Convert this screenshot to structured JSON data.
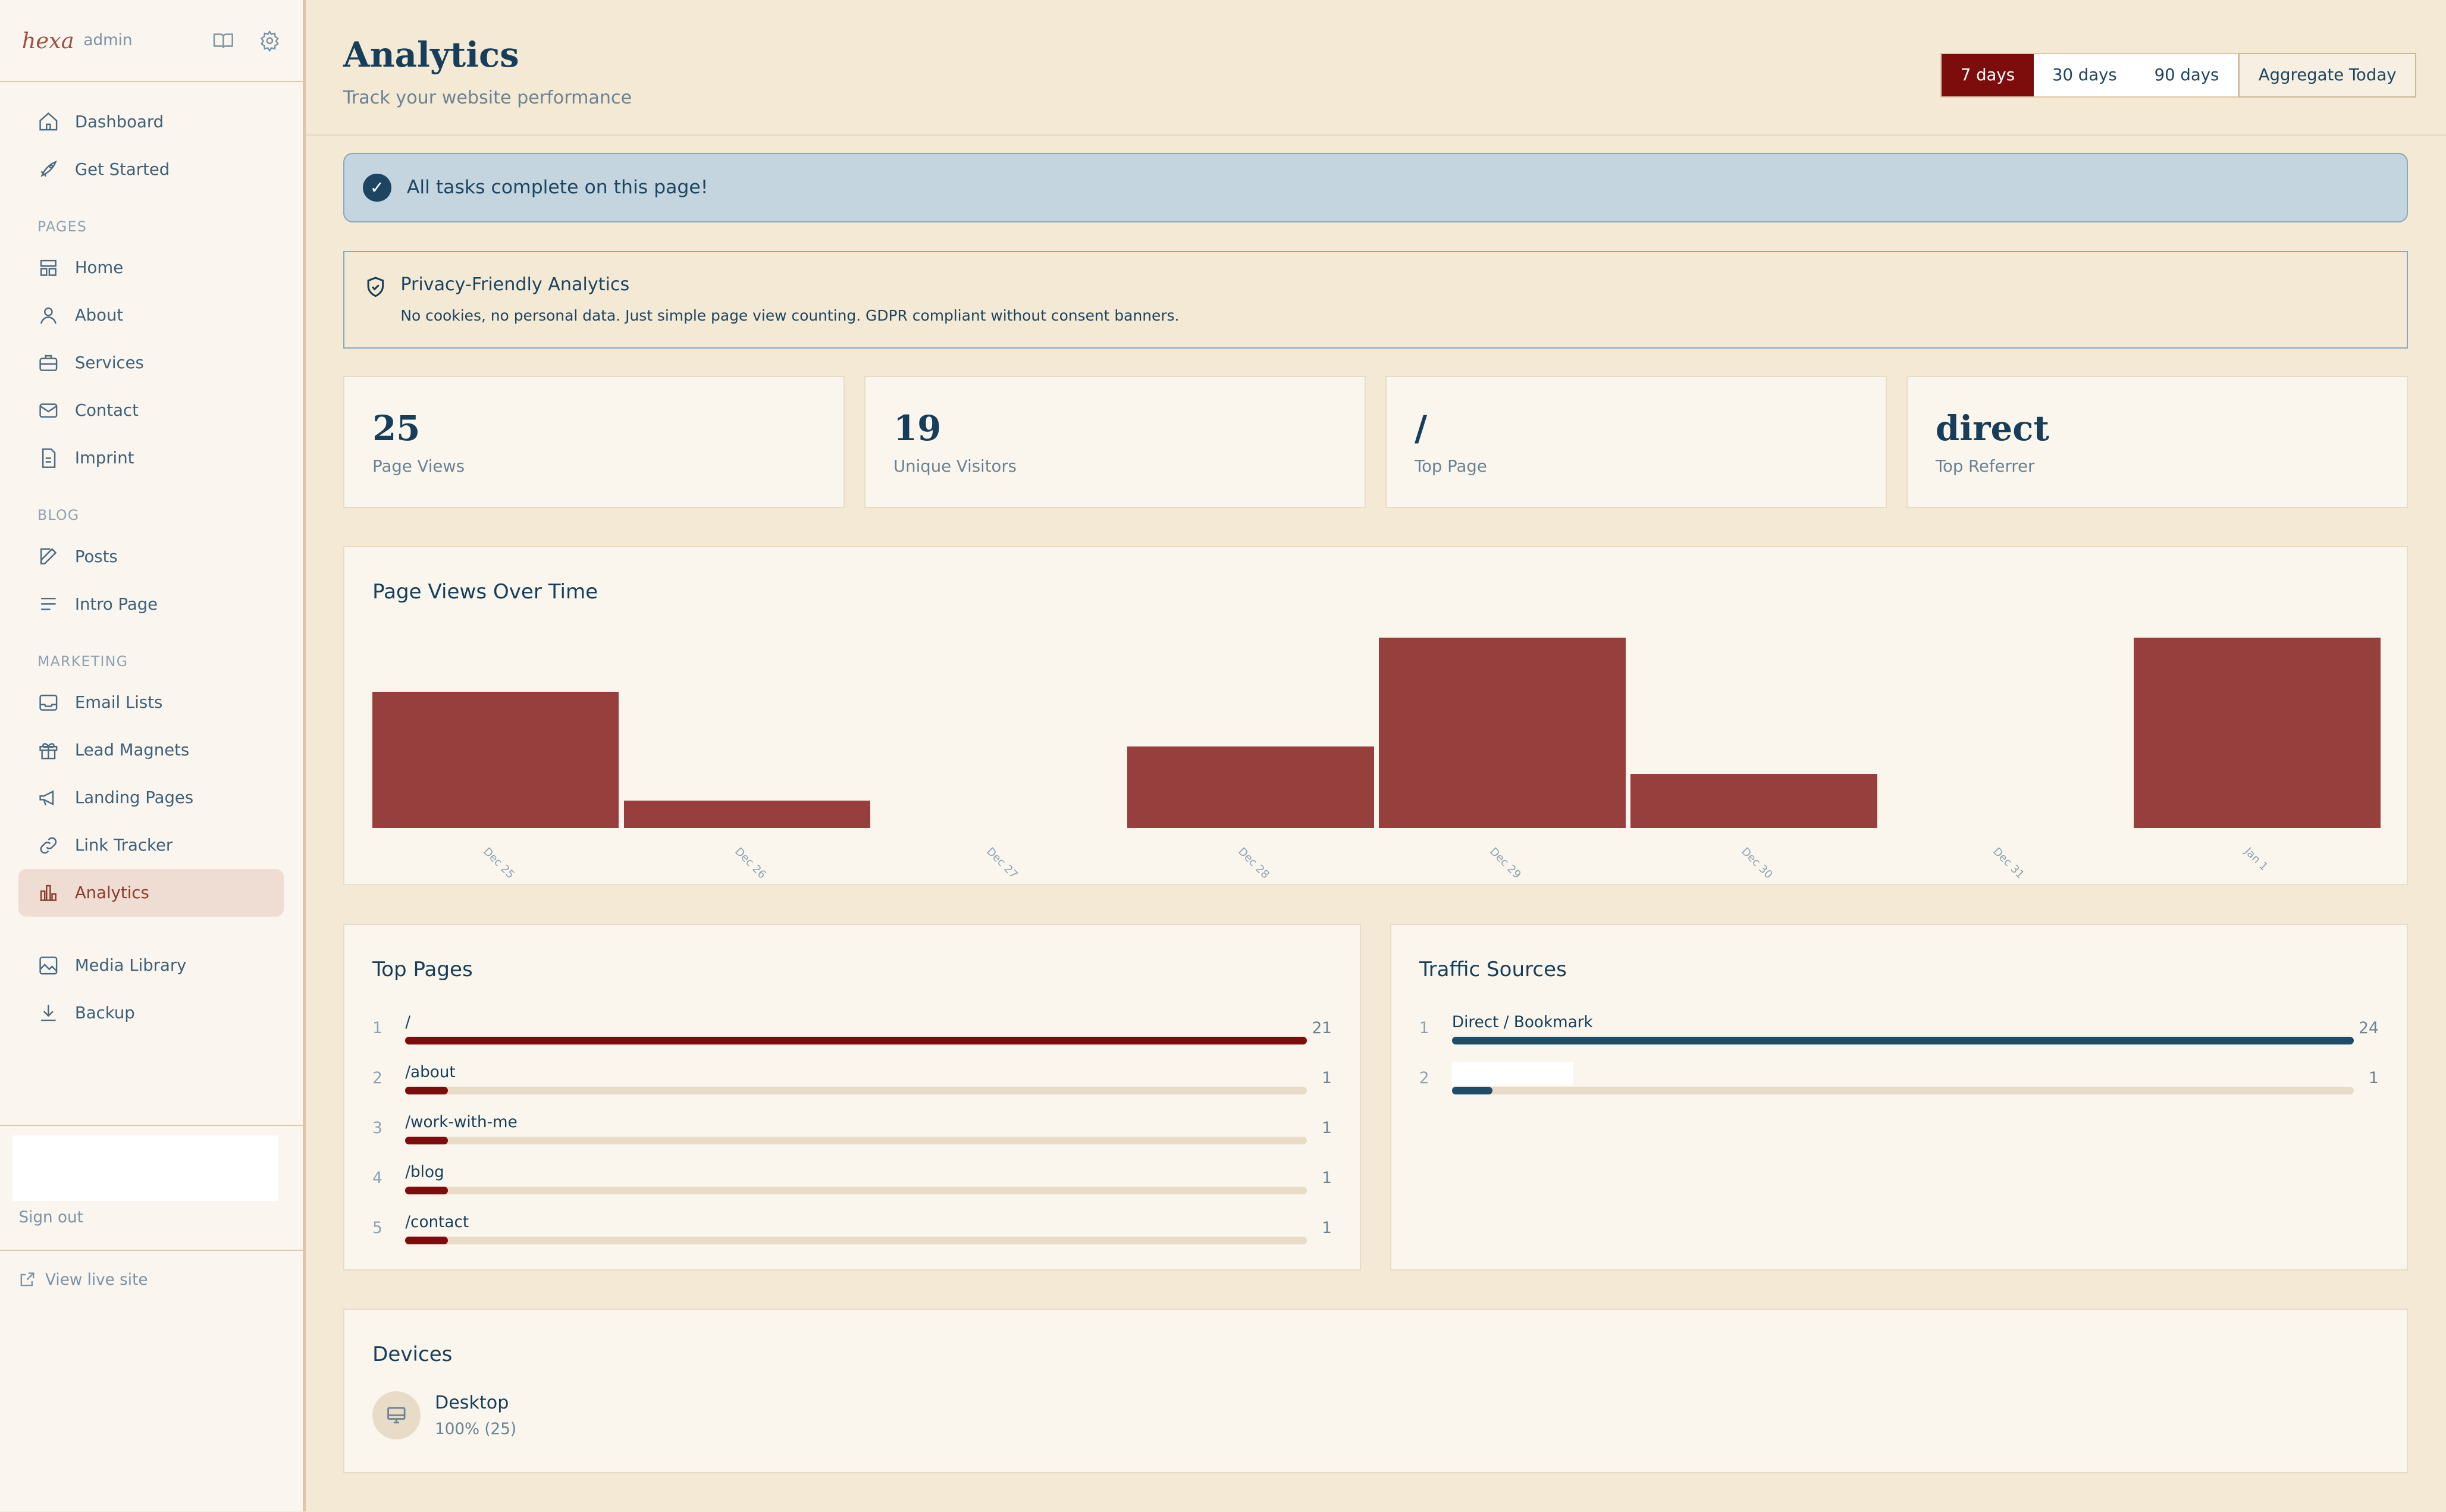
{
  "sidebar": {
    "logo": "hexa",
    "admin": "admin",
    "items_top": [
      {
        "label": "Dashboard",
        "icon": "home-icon"
      },
      {
        "label": "Get Started",
        "icon": "rocket-icon"
      }
    ],
    "sections": [
      {
        "title": "PAGES",
        "items": [
          {
            "label": "Home"
          },
          {
            "label": "About"
          },
          {
            "label": "Services"
          },
          {
            "label": "Contact"
          },
          {
            "label": "Imprint"
          }
        ]
      },
      {
        "title": "BLOG",
        "items": [
          {
            "label": "Posts"
          },
          {
            "label": "Intro Page"
          }
        ]
      },
      {
        "title": "MARKETING",
        "items": [
          {
            "label": "Email Lists"
          },
          {
            "label": "Lead Magnets"
          },
          {
            "label": "Landing Pages"
          },
          {
            "label": "Link Tracker"
          },
          {
            "label": "Analytics"
          }
        ]
      }
    ],
    "items_bottom": [
      {
        "label": "Media Library"
      },
      {
        "label": "Backup"
      }
    ],
    "sign_out": "Sign out",
    "view_live": "View live site"
  },
  "header": {
    "title": "Analytics",
    "subtitle": "Track your website performance",
    "ranges": [
      "7 days",
      "30 days",
      "90 days"
    ],
    "selected_range": "7 days",
    "aggregate": "Aggregate Today"
  },
  "banner": {
    "text": "All tasks complete on this page!"
  },
  "privacy": {
    "title": "Privacy-Friendly Analytics",
    "text": "No cookies, no personal data. Just simple page view counting. GDPR compliant without consent banners."
  },
  "stats": [
    {
      "value": "25",
      "label": "Page Views"
    },
    {
      "value": "19",
      "label": "Unique Visitors"
    },
    {
      "value": "/",
      "label": "Top Page"
    },
    {
      "value": "direct",
      "label": "Top Referrer"
    }
  ],
  "chart_data": {
    "type": "bar",
    "title": "Page Views Over Time",
    "categories": [
      "Dec 25",
      "Dec 26",
      "Dec 27",
      "Dec 28",
      "Dec 29",
      "Dec 30",
      "Dec 31",
      "Jan 1"
    ],
    "values": [
      5,
      1,
      0,
      3,
      7,
      2,
      0,
      7
    ],
    "ylim": [
      0,
      7
    ],
    "color": "#963f3c"
  },
  "top_pages": {
    "title": "Top Pages",
    "max": 21,
    "rows": [
      {
        "rank": "1",
        "path": "/",
        "count": 21
      },
      {
        "rank": "2",
        "path": "/about",
        "count": 1
      },
      {
        "rank": "3",
        "path": "/work-with-me",
        "count": 1
      },
      {
        "rank": "4",
        "path": "/blog",
        "count": 1
      },
      {
        "rank": "5",
        "path": "/contact",
        "count": 1
      }
    ]
  },
  "traffic": {
    "title": "Traffic Sources",
    "max": 24,
    "rows": [
      {
        "rank": "1",
        "source": "Direct / Bookmark",
        "count": 24
      },
      {
        "rank": "2",
        "source": "",
        "count": 1
      }
    ]
  },
  "devices": {
    "title": "Devices",
    "items": [
      {
        "name": "Desktop",
        "detail": "100% (25)"
      }
    ]
  }
}
